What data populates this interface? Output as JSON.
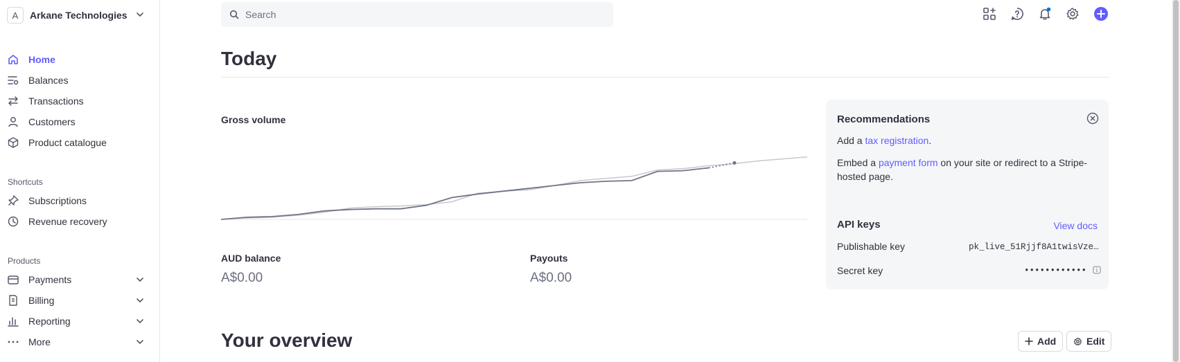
{
  "account": {
    "initial": "A",
    "name": "Arkane Technologies"
  },
  "nav": {
    "main": [
      {
        "label": "Home"
      },
      {
        "label": "Balances"
      },
      {
        "label": "Transactions"
      },
      {
        "label": "Customers"
      },
      {
        "label": "Product catalogue"
      }
    ],
    "shortcuts_label": "Shortcuts",
    "shortcuts": [
      {
        "label": "Subscriptions"
      },
      {
        "label": "Revenue recovery"
      }
    ],
    "products_label": "Products",
    "products": [
      {
        "label": "Payments"
      },
      {
        "label": "Billing"
      },
      {
        "label": "Reporting"
      },
      {
        "label": "More"
      }
    ]
  },
  "search": {
    "placeholder": "Search"
  },
  "colors": {
    "accent": "#635bff",
    "text": "#30313d",
    "muted": "#6c7080"
  },
  "today": {
    "title": "Today",
    "gross_volume_title": "Gross volume",
    "aud_balance_title": "AUD balance",
    "aud_balance_value": "A$0.00",
    "payouts_title": "Payouts",
    "payouts_value": "A$0.00"
  },
  "recommendations": {
    "title": "Recommendations",
    "item1_pre": "Add a ",
    "item1_link": "tax registration",
    "item1_post": ".",
    "item2_pre": "Embed a ",
    "item2_link": "payment form",
    "item2_post": " on your site or redirect to a Stripe-hosted page."
  },
  "api_keys": {
    "title": "API keys",
    "view_docs": "View docs",
    "publishable_label": "Publishable key",
    "publishable_value": "pk_live_51Rjjf8A1twisVze…",
    "secret_label": "Secret key",
    "secret_value": "••••••••••••"
  },
  "overview": {
    "title": "Your overview",
    "add_label": "Add",
    "edit_label": "Edit"
  },
  "chart_data": {
    "type": "line",
    "series": [
      {
        "values": [
          0,
          3,
          4,
          7,
          12,
          14,
          15,
          15,
          20,
          31,
          36,
          40,
          44,
          48,
          52,
          54,
          55,
          68,
          69,
          73
        ]
      },
      {
        "values": [
          0,
          2,
          3,
          6,
          10,
          16,
          18,
          19,
          21,
          25,
          37,
          40,
          42,
          48,
          55,
          58,
          61,
          70,
          72,
          76,
          79,
          83,
          86,
          89,
          92
        ]
      }
    ]
  }
}
